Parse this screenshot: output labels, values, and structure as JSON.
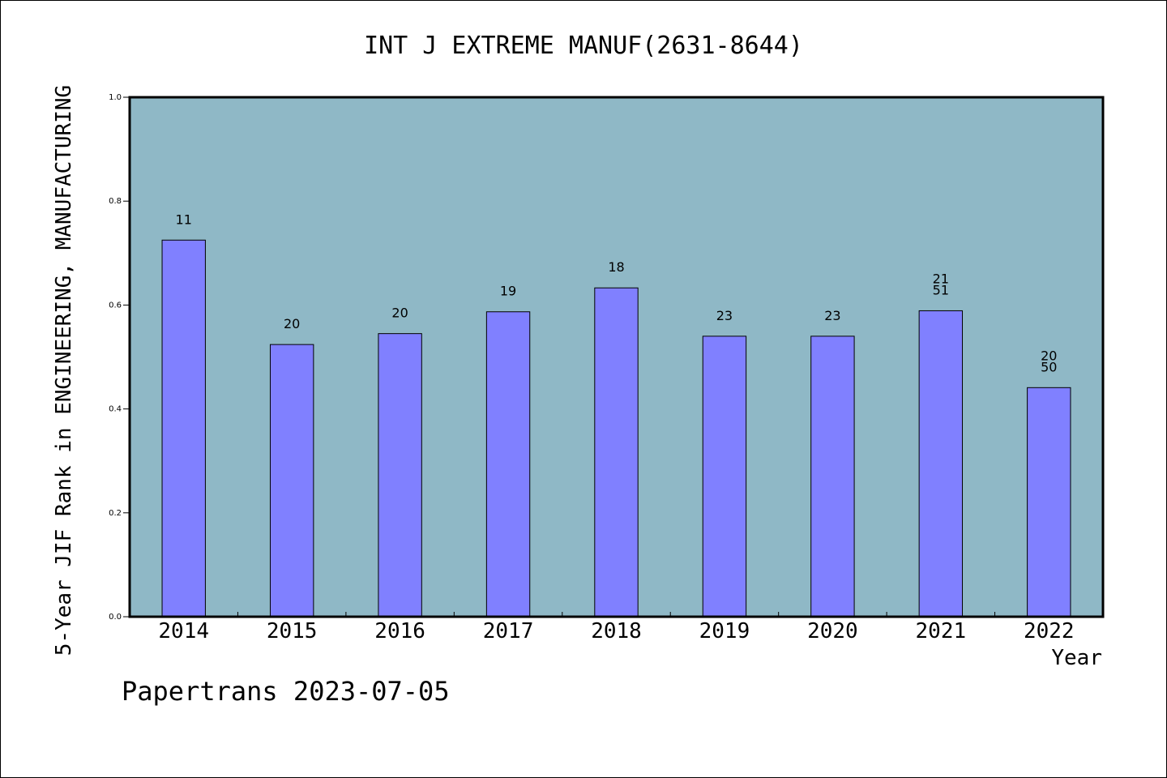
{
  "chart_data": {
    "type": "bar",
    "title": "INT J EXTREME MANUF(2631-8644)",
    "xlabel": "Year",
    "ylabel": "5-Year JIF Rank in ENGINEERING, MANUFACTURING",
    "ylim": [
      0,
      1.0
    ],
    "yticks": [
      "0.0",
      "0.2",
      "0.4",
      "0.6",
      "0.8",
      "1.0"
    ],
    "categories": [
      "2014",
      "2015",
      "2016",
      "2017",
      "2018",
      "2019",
      "2020",
      "2021",
      "2022"
    ],
    "values": [
      0.725,
      0.524,
      0.545,
      0.587,
      0.633,
      0.54,
      0.54,
      0.589,
      0.441
    ],
    "bar_labels": [
      [
        "11"
      ],
      [
        "20"
      ],
      [
        "20"
      ],
      [
        "19"
      ],
      [
        "18"
      ],
      [
        "23"
      ],
      [
        "23"
      ],
      [
        "21",
        "51"
      ],
      [
        "20",
        "50"
      ]
    ],
    "bar_color": "#8080ff",
    "plot_background": "#8fb8c6",
    "grid": false
  },
  "footer": "Papertrans 2023-07-05"
}
